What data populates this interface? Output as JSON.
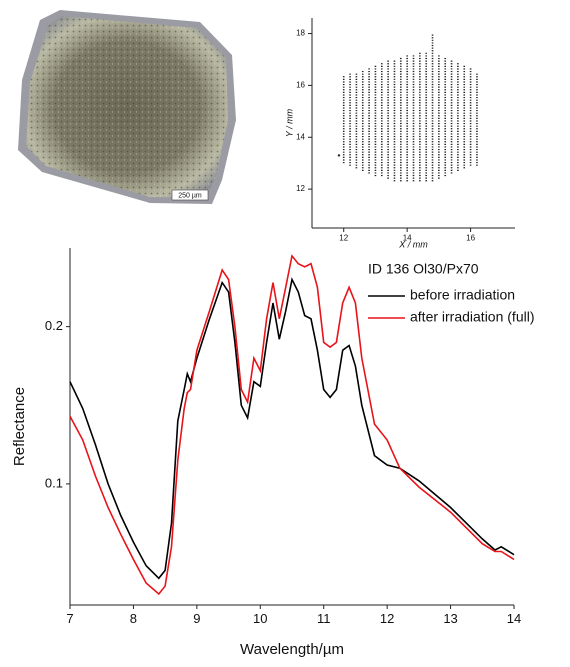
{
  "image": {
    "scale_label": "250 µm"
  },
  "chart_data": [
    {
      "type": "grid-scan",
      "xlabel": "X / mm",
      "ylabel": "Y / mm",
      "xlim": [
        11,
        17.4
      ],
      "ylim": [
        10.5,
        18.6
      ],
      "xticks": [
        12,
        14,
        16
      ],
      "yticks": [
        12,
        14,
        16,
        18
      ],
      "color": "#222222",
      "columns": {
        "x": [
          12.0,
          12.2,
          12.4,
          12.6,
          12.8,
          13.0,
          13.2,
          13.4,
          13.6,
          13.8,
          14.0,
          14.2,
          14.4,
          14.6,
          14.8,
          15.0,
          15.2,
          15.4,
          15.6,
          15.8,
          16.0,
          16.2
        ],
        "ymin": [
          13.0,
          12.9,
          12.8,
          12.7,
          12.6,
          12.5,
          12.5,
          12.4,
          12.3,
          12.3,
          12.3,
          12.3,
          12.3,
          12.3,
          12.3,
          12.4,
          12.5,
          12.6,
          12.7,
          12.8,
          12.9,
          12.9
        ],
        "ymax": [
          16.4,
          16.5,
          16.5,
          16.6,
          16.7,
          16.8,
          16.9,
          17.0,
          17.0,
          17.1,
          17.2,
          17.2,
          17.3,
          17.3,
          18.0,
          17.2,
          17.1,
          17.0,
          16.9,
          16.8,
          16.7,
          16.5
        ]
      },
      "x": [
        11.85
      ],
      "values": [
        13.3
      ]
    },
    {
      "type": "line",
      "annotation": "ID 136 Ol30/Px70",
      "xlabel": "Wavelength/µm",
      "ylabel": "Reflectance",
      "xlim": [
        7,
        14
      ],
      "ylim": [
        0.023,
        0.25
      ],
      "xticks": [
        7,
        8,
        9,
        10,
        11,
        12,
        13,
        14
      ],
      "yticks": [
        0.1,
        0.2
      ],
      "x": [
        7.0,
        7.2,
        7.4,
        7.6,
        7.8,
        8.0,
        8.2,
        8.4,
        8.5,
        8.6,
        8.7,
        8.8,
        8.85,
        8.9,
        9.0,
        9.2,
        9.4,
        9.5,
        9.6,
        9.7,
        9.8,
        9.9,
        10.0,
        10.1,
        10.2,
        10.3,
        10.4,
        10.5,
        10.6,
        10.7,
        10.8,
        10.9,
        11.0,
        11.1,
        11.2,
        11.3,
        11.4,
        11.5,
        11.6,
        11.8,
        12.0,
        12.2,
        12.5,
        13.0,
        13.5,
        13.7,
        13.8,
        14.0
      ],
      "series": [
        {
          "name": "before irradiation",
          "color": "#000000",
          "values": [
            0.165,
            0.148,
            0.125,
            0.1,
            0.08,
            0.063,
            0.048,
            0.04,
            0.045,
            0.075,
            0.14,
            0.16,
            0.17,
            0.165,
            0.18,
            0.205,
            0.228,
            0.222,
            0.19,
            0.15,
            0.142,
            0.165,
            0.162,
            0.19,
            0.215,
            0.192,
            0.21,
            0.23,
            0.222,
            0.207,
            0.205,
            0.185,
            0.16,
            0.155,
            0.16,
            0.185,
            0.188,
            0.175,
            0.15,
            0.118,
            0.112,
            0.11,
            0.102,
            0.085,
            0.065,
            0.058,
            0.06,
            0.055
          ]
        },
        {
          "name": "after irradiation (full)",
          "color": "#e8141a",
          "values": [
            0.143,
            0.128,
            0.105,
            0.085,
            0.068,
            0.052,
            0.037,
            0.03,
            0.035,
            0.06,
            0.115,
            0.148,
            0.158,
            0.16,
            0.185,
            0.21,
            0.236,
            0.23,
            0.2,
            0.16,
            0.152,
            0.18,
            0.172,
            0.205,
            0.228,
            0.205,
            0.225,
            0.245,
            0.24,
            0.238,
            0.24,
            0.225,
            0.19,
            0.187,
            0.19,
            0.215,
            0.225,
            0.215,
            0.18,
            0.138,
            0.128,
            0.11,
            0.098,
            0.082,
            0.062,
            0.057,
            0.057,
            0.052
          ]
        }
      ]
    }
  ]
}
